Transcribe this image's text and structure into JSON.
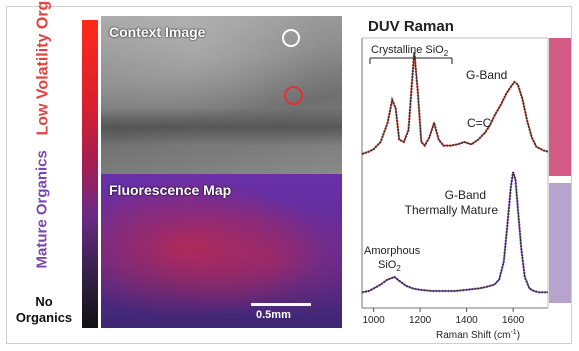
{
  "left_scale": {
    "low_label": "Low Volatility Organics",
    "mature_label": "Mature Organics",
    "none_label": "No Organics"
  },
  "images": {
    "context_title": "Context Image",
    "fluorescence_title": "Fluorescence Map",
    "scale_bar_label": "0.5mm"
  },
  "raman": {
    "title": "DUV Raman",
    "annotations": {
      "crystalline": "Crystalline SiO",
      "crystalline_sub": "2",
      "g_band": "G-Band",
      "c_eq_c": "C=C",
      "g_band_mature_1": "G-Band",
      "g_band_mature_2": "Thermally Mature",
      "amorphous_1": "Amorphous",
      "amorphous_2": "SiO",
      "amorphous_sub": "2"
    },
    "side_tags": [
      "",
      ""
    ],
    "x_axis": {
      "label": "Raman Shift (cm",
      "label_sup": "-1",
      "label_end": ")",
      "ticks": [
        1000,
        1200,
        1400,
        1600
      ],
      "range": [
        950,
        1750
      ]
    }
  },
  "chart_data": {
    "type": "line",
    "x_unit": "Raman Shift (cm-1)",
    "series": [
      {
        "x": [
          950,
          980,
          1000,
          1030,
          1060,
          1080,
          1095,
          1110,
          1130,
          1150,
          1165,
          1175,
          1190,
          1205,
          1220,
          1240,
          1260,
          1280,
          1300,
          1330,
          1360,
          1390,
          1420,
          1450,
          1480,
          1500,
          1520,
          1550,
          1570,
          1590,
          1605,
          1620,
          1640,
          1660,
          1680,
          1700,
          1730,
          1750
        ],
        "y": [
          0.1,
          0.12,
          0.14,
          0.2,
          0.36,
          0.55,
          0.48,
          0.22,
          0.2,
          0.3,
          0.7,
          0.95,
          0.62,
          0.2,
          0.17,
          0.24,
          0.36,
          0.22,
          0.17,
          0.17,
          0.18,
          0.2,
          0.18,
          0.22,
          0.28,
          0.34,
          0.42,
          0.52,
          0.6,
          0.66,
          0.7,
          0.68,
          0.56,
          0.38,
          0.24,
          0.16,
          0.13,
          0.12
        ]
      },
      {
        "x": [
          950,
          980,
          1000,
          1030,
          1060,
          1090,
          1110,
          1140,
          1170,
          1200,
          1250,
          1300,
          1350,
          1400,
          1450,
          1480,
          1500,
          1520,
          1540,
          1560,
          1575,
          1590,
          1600,
          1610,
          1620,
          1635,
          1650,
          1670,
          1690,
          1710,
          1730,
          1750
        ],
        "y": [
          0.06,
          0.07,
          0.09,
          0.12,
          0.16,
          0.18,
          0.15,
          0.11,
          0.09,
          0.08,
          0.07,
          0.07,
          0.07,
          0.08,
          0.09,
          0.1,
          0.11,
          0.12,
          0.16,
          0.3,
          0.58,
          0.88,
          1.0,
          0.94,
          0.72,
          0.4,
          0.18,
          0.09,
          0.07,
          0.06,
          0.06,
          0.06
        ]
      }
    ],
    "xlim": [
      950,
      1750
    ],
    "xticks": [
      1000,
      1200,
      1400,
      1600
    ]
  },
  "colors": {
    "low_label": "#e34040",
    "mature_label": "#7a48a8",
    "spectrum_top": "#c0301f",
    "spectrum_bottom": "#7c3cb8",
    "fit_line": "#333333"
  }
}
